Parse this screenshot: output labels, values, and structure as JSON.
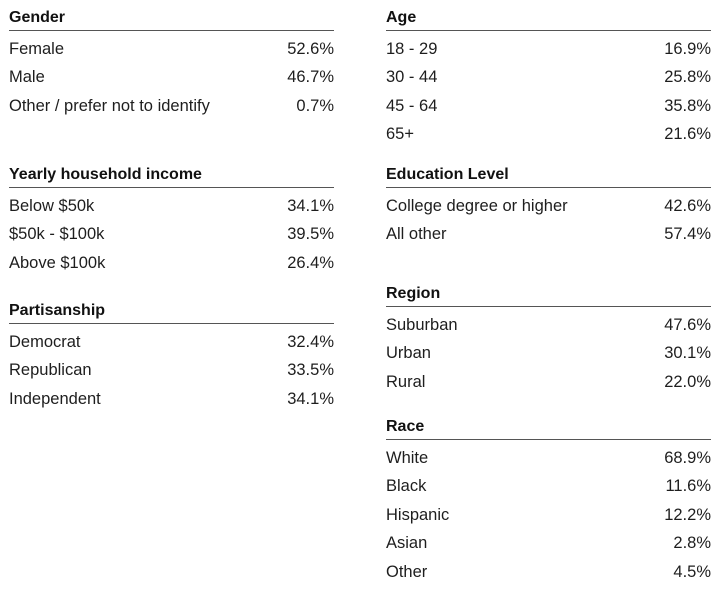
{
  "left": {
    "gender": {
      "title": "Gender",
      "rows": [
        {
          "label": "Female",
          "value": "52.6%"
        },
        {
          "label": "Male",
          "value": "46.7%"
        },
        {
          "label": "Other / prefer not to identify",
          "value": "0.7%"
        }
      ]
    },
    "income": {
      "title": "Yearly household income",
      "rows": [
        {
          "label": "Below $50k",
          "value": "34.1%"
        },
        {
          "label": "$50k - $100k",
          "value": "39.5%"
        },
        {
          "label": "Above $100k",
          "value": "26.4%"
        }
      ]
    },
    "partisanship": {
      "title": "Partisanship",
      "rows": [
        {
          "label": "Democrat",
          "value": "32.4%"
        },
        {
          "label": "Republican",
          "value": "33.5%"
        },
        {
          "label": "Independent",
          "value": "34.1%"
        }
      ]
    }
  },
  "right": {
    "age": {
      "title": "Age",
      "rows": [
        {
          "label": "18 - 29",
          "value": "16.9%"
        },
        {
          "label": "30 - 44",
          "value": "25.8%"
        },
        {
          "label": "45 - 64",
          "value": "35.8%"
        },
        {
          "label": "65+",
          "value": "21.6%"
        }
      ]
    },
    "education": {
      "title": "Education Level",
      "rows": [
        {
          "label": "College degree or higher",
          "value": "42.6%"
        },
        {
          "label": "All other",
          "value": "57.4%"
        }
      ]
    },
    "region": {
      "title": "Region",
      "rows": [
        {
          "label": "Suburban",
          "value": "47.6%"
        },
        {
          "label": "Urban",
          "value": "30.1%"
        },
        {
          "label": "Rural",
          "value": "22.0%"
        }
      ]
    },
    "race": {
      "title": "Race",
      "rows": [
        {
          "label": "White",
          "value": "68.9%"
        },
        {
          "label": "Black",
          "value": "11.6%"
        },
        {
          "label": "Hispanic",
          "value": "12.2%"
        },
        {
          "label": "Asian",
          "value": "2.8%"
        },
        {
          "label": "Other",
          "value": "4.5%"
        }
      ]
    }
  }
}
